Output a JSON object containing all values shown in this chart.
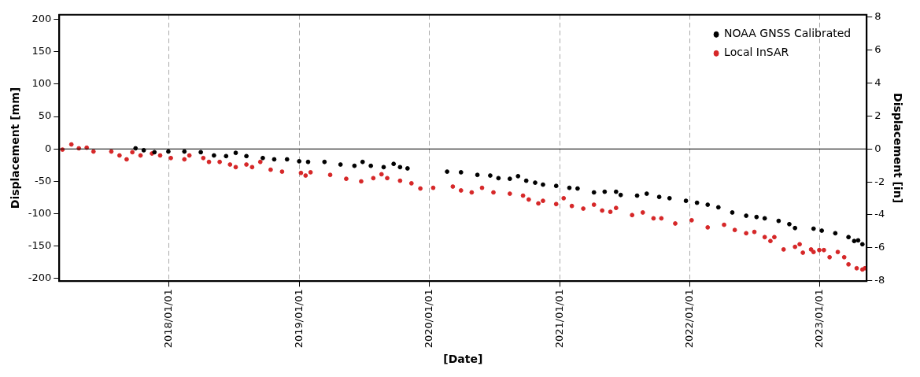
{
  "chart_data": {
    "type": "scatter",
    "xlabel": "[Date]",
    "ylabel": "Displacement [mm]",
    "y2label": "Displacement [in]",
    "xlim": [
      "2017-02-27",
      "2023-05-12"
    ],
    "xticks": [
      {
        "value": "2018-01-01",
        "label": "2018/01/01"
      },
      {
        "value": "2019-01-01",
        "label": "2019/01/01"
      },
      {
        "value": "2020-01-01",
        "label": "2020/01/01"
      },
      {
        "value": "2021-01-01",
        "label": "2021/01/01"
      },
      {
        "value": "2022-01-01",
        "label": "2022/01/01"
      },
      {
        "value": "2023-01-01",
        "label": "2023/01/01"
      }
    ],
    "ylim": [
      -204,
      207
    ],
    "yticks": [
      -200,
      -150,
      -100,
      -50,
      0,
      50,
      100,
      150,
      200
    ],
    "y2lim": [
      -8.03,
      8.15
    ],
    "y2ticks": [
      -8,
      -6,
      -4,
      -2,
      0,
      2,
      4,
      6,
      8
    ],
    "grid": "x",
    "legend": "top right",
    "marker": "circle",
    "ref_lines": [
      {
        "axis": "y",
        "value": 0,
        "color": "#000000",
        "line_style": "solid"
      }
    ],
    "series": [
      {
        "name": "NOAA GNSS Calibrated",
        "color": "#000000",
        "x": [
          "2017-09-29",
          "2017-10-22",
          "2017-11-21",
          "2017-12-30",
          "2018-02-13",
          "2018-03-31",
          "2018-05-07",
          "2018-06-10",
          "2018-07-07",
          "2018-08-06",
          "2018-09-21",
          "2018-10-23",
          "2018-11-28",
          "2019-01-01",
          "2019-01-26",
          "2019-03-13",
          "2019-04-27",
          "2019-06-05",
          "2019-06-28",
          "2019-07-21",
          "2019-08-26",
          "2019-09-23",
          "2019-10-11",
          "2019-11-01",
          "2020-02-20",
          "2020-03-30",
          "2020-05-15",
          "2020-06-20",
          "2020-07-13",
          "2020-08-14",
          "2020-09-06",
          "2020-09-29",
          "2020-10-24",
          "2020-11-15",
          "2020-12-22",
          "2021-01-28",
          "2021-02-20",
          "2021-04-07",
          "2021-05-07",
          "2021-06-08",
          "2021-06-21",
          "2021-08-06",
          "2021-09-02",
          "2021-10-07",
          "2021-11-05",
          "2021-12-21",
          "2022-01-21",
          "2022-02-20",
          "2022-03-22",
          "2022-04-30",
          "2022-06-08",
          "2022-07-07",
          "2022-07-30",
          "2022-09-07",
          "2022-10-07",
          "2022-10-23",
          "2022-12-14",
          "2023-01-06",
          "2023-02-13",
          "2023-03-22",
          "2023-04-07",
          "2023-04-18",
          "2023-04-30"
        ],
        "values": [
          1,
          -2,
          -5,
          -4,
          -4,
          -5,
          -10,
          -11,
          -6,
          -11,
          -14,
          -16,
          -16,
          -19,
          -20,
          -20,
          -24,
          -26,
          -20,
          -26,
          -28,
          -23,
          -28,
          -30,
          -35,
          -36,
          -40,
          -41,
          -45,
          -46,
          -42,
          -49,
          -52,
          -55,
          -57,
          -60,
          -61,
          -67,
          -66,
          -66,
          -71,
          -72,
          -69,
          -74,
          -76,
          -80,
          -83,
          -86,
          -90,
          -98,
          -103,
          -105,
          -107,
          -111,
          -116,
          -122,
          -123,
          -126,
          -130,
          -136,
          -142,
          -141,
          -147
        ]
      },
      {
        "name": "Local InSAR",
        "color": "#d62728",
        "x": [
          "2017-03-08",
          "2017-04-02",
          "2017-04-23",
          "2017-05-15",
          "2017-06-03",
          "2017-07-23",
          "2017-08-15",
          "2017-09-04",
          "2017-09-20",
          "2017-10-13",
          "2017-11-14",
          "2017-12-07",
          "2018-01-06",
          "2018-02-13",
          "2018-02-27",
          "2018-04-07",
          "2018-04-23",
          "2018-05-23",
          "2018-06-21",
          "2018-07-07",
          "2018-08-06",
          "2018-08-22",
          "2018-09-14",
          "2018-10-13",
          "2018-11-14",
          "2019-01-06",
          "2019-01-19",
          "2019-02-02",
          "2019-03-29",
          "2019-05-13",
          "2019-06-24",
          "2019-07-28",
          "2019-08-20",
          "2019-09-05",
          "2019-10-11",
          "2019-11-12",
          "2019-12-07",
          "2020-01-12",
          "2020-03-07",
          "2020-03-30",
          "2020-04-29",
          "2020-05-28",
          "2020-06-29",
          "2020-08-14",
          "2020-09-20",
          "2020-10-06",
          "2020-11-02",
          "2020-11-15",
          "2020-12-22",
          "2021-01-12",
          "2021-02-04",
          "2021-03-08",
          "2021-04-07",
          "2021-04-30",
          "2021-05-23",
          "2021-06-08",
          "2021-07-23",
          "2021-08-22",
          "2021-09-21",
          "2021-10-13",
          "2021-11-21",
          "2022-01-06",
          "2022-02-20",
          "2022-04-07",
          "2022-05-07",
          "2022-06-08",
          "2022-07-01",
          "2022-07-30",
          "2022-08-15",
          "2022-08-26",
          "2022-09-21",
          "2022-10-23",
          "2022-11-05",
          "2022-11-14",
          "2022-12-07",
          "2022-12-14",
          "2022-12-30",
          "2023-01-12",
          "2023-01-28",
          "2023-02-20",
          "2023-03-10",
          "2023-03-22",
          "2023-04-14",
          "2023-04-30",
          "2023-05-07"
        ],
        "values": [
          -1,
          7,
          1,
          2,
          -4,
          -4,
          -10,
          -16,
          -5,
          -10,
          -7,
          -10,
          -14,
          -16,
          -10,
          -14,
          -20,
          -20,
          -24,
          -28,
          -24,
          -28,
          -20,
          -32,
          -35,
          -37,
          -41,
          -36,
          -40,
          -46,
          -50,
          -45,
          -39,
          -45,
          -49,
          -53,
          -61,
          -60,
          -58,
          -64,
          -67,
          -60,
          -67,
          -69,
          -72,
          -78,
          -84,
          -80,
          -85,
          -76,
          -88,
          -92,
          -86,
          -95,
          -97,
          -91,
          -102,
          -98,
          -107,
          -107,
          -115,
          -110,
          -121,
          -117,
          -125,
          -130,
          -128,
          -136,
          -142,
          -136,
          -155,
          -151,
          -147,
          -160,
          -155,
          -159,
          -156,
          -156,
          -167,
          -159,
          -167,
          -178,
          -184,
          -186,
          -184
        ]
      }
    ]
  }
}
